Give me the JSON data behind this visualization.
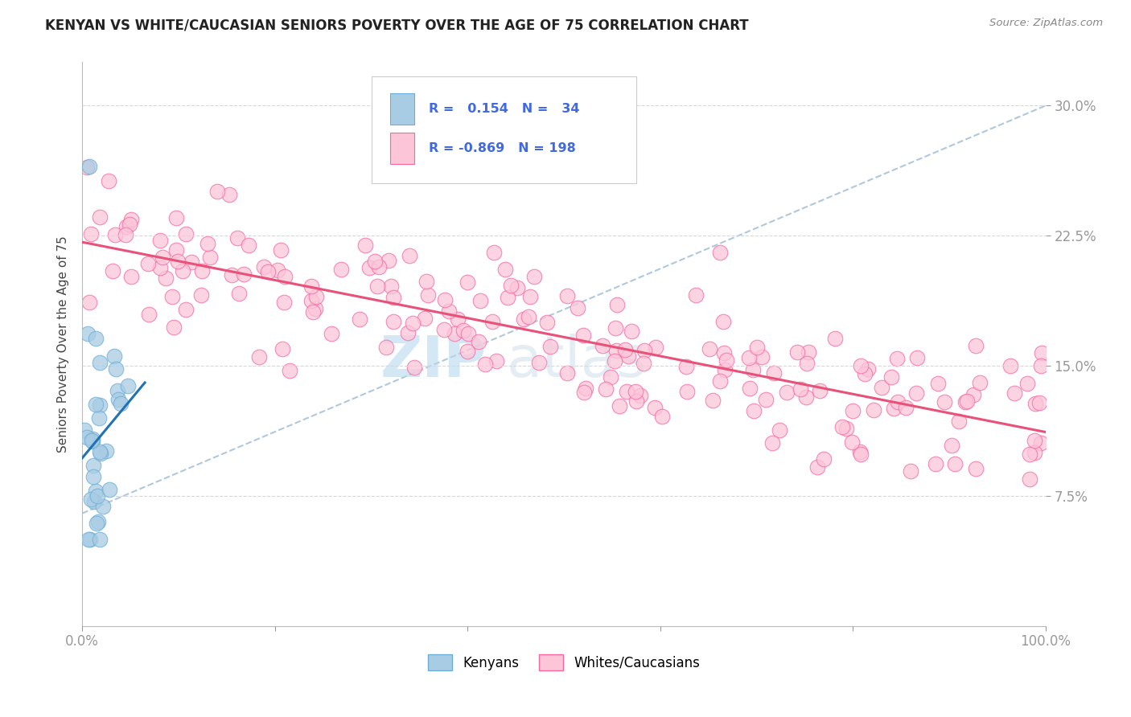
{
  "title": "KENYAN VS WHITE/CAUCASIAN SENIORS POVERTY OVER THE AGE OF 75 CORRELATION CHART",
  "source": "Source: ZipAtlas.com",
  "ylabel": "Seniors Poverty Over the Age of 75",
  "xlim": [
    0.0,
    1.0
  ],
  "ylim": [
    0.0,
    0.325
  ],
  "yticks": [
    0.075,
    0.15,
    0.225,
    0.3
  ],
  "ytick_labels": [
    "7.5%",
    "15.0%",
    "22.5%",
    "30.0%"
  ],
  "xticks": [
    0.0,
    0.2,
    0.4,
    0.6,
    0.8,
    1.0
  ],
  "xtick_labels": [
    "0.0%",
    "",
    "",
    "",
    "",
    "100.0%"
  ],
  "kenyan_R": 0.154,
  "kenyan_N": 34,
  "white_R": -0.869,
  "white_N": 198,
  "kenyan_color": "#6baed6",
  "kenyan_fill": "#a8cce4",
  "white_color": "#f768a1",
  "white_fill": "#fcc5d8",
  "trend_color_kenyan": "#2171b5",
  "trend_color_white": "#e8527a",
  "trend_color_dashed": "#b0c8dc",
  "watermark1": "ZIP",
  "watermark2": "atlas",
  "tick_color": "#4169e1",
  "grid_color": "#d8d8d8"
}
